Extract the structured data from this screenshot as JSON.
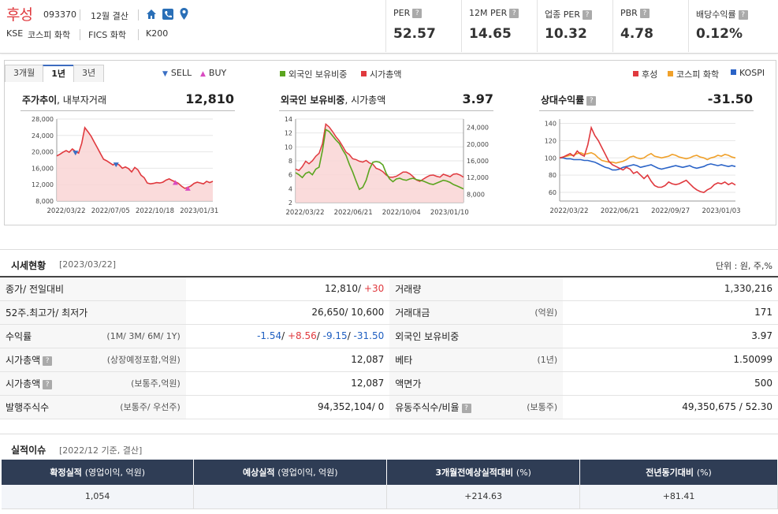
{
  "header": {
    "company": "후성",
    "code": "093370",
    "settlement": "12월 결산",
    "market": "KSE",
    "market_sector": "코스피 화학",
    "fics": "FICS 화학",
    "index": "K200",
    "icons": [
      "home-icon",
      "phone-icon",
      "location-icon"
    ]
  },
  "metrics": [
    {
      "label": "PER",
      "value": "52.57"
    },
    {
      "label": "12M PER",
      "value": "14.65"
    },
    {
      "label": "업종 PER",
      "value": "10.32"
    },
    {
      "label": "PBR",
      "value": "4.78"
    },
    {
      "label": "배당수익률",
      "value": "0.12%"
    }
  ],
  "chart_tabs": [
    "3개월",
    "1년",
    "3년"
  ],
  "active_tab": "1년",
  "legends": {
    "sell": "SELL",
    "buy": "BUY",
    "foreign": "외국인 보유비중",
    "mcap": "시가총액",
    "stock": "후성",
    "sector": "코스피 화학",
    "kospi": "KOSPI"
  },
  "colors": {
    "stock": "#e0393e",
    "sector": "#f0a12b",
    "kospi": "#2a63c7",
    "foreign": "#5ba51f",
    "sell": "#3a6fc4",
    "buy": "#d94bc1"
  },
  "charts": {
    "price": {
      "title": "주가추이",
      "subtitle": ", 내부자거래",
      "value": "12,810"
    },
    "foreign": {
      "title": "외국인 보유비중",
      "subtitle": ", 시가총액",
      "value": "3.97"
    },
    "relative": {
      "title": "상대수익률",
      "value": "-31.50"
    }
  },
  "chart_data": [
    {
      "type": "line",
      "title": "주가추이, 내부자거래",
      "x_ticks": [
        "2022/03/22",
        "2022/07/05",
        "2022/10/18",
        "2023/01/31"
      ],
      "y_ticks": [
        "28,000",
        "24,000",
        "20,000",
        "16,000",
        "12,000",
        "8,000"
      ],
      "ylim": [
        8000,
        28000
      ],
      "series": [
        {
          "name": "후성",
          "values": [
            19000,
            19400,
            19900,
            20300,
            19900,
            20700,
            20100,
            19700,
            22100,
            25900,
            24900,
            23800,
            22400,
            21000,
            19600,
            18200,
            17800,
            17300,
            16800,
            17200,
            16800,
            16000,
            16300,
            15900,
            15100,
            16200,
            15600,
            14300,
            13700,
            12400,
            12200,
            12300,
            12500,
            12400,
            12600,
            13100,
            13400,
            13000,
            12700,
            12300,
            11600,
            11100,
            11300,
            11700,
            12300,
            12600,
            12400,
            12200,
            12800,
            12500,
            12810
          ]
        }
      ],
      "markers": [
        {
          "kind": "SELL",
          "index": 6
        },
        {
          "kind": "SELL",
          "index": 19
        },
        {
          "kind": "BUY",
          "index": 38
        },
        {
          "kind": "BUY",
          "index": 42
        }
      ]
    },
    {
      "type": "line",
      "title": "외국인 보유비중, 시가총액",
      "x_ticks": [
        "2022/03/22",
        "2022/06/21",
        "2022/10/04",
        "2023/01/10"
      ],
      "y_left_ticks": [
        "14",
        "12",
        "10",
        "8",
        "6",
        "4",
        "2"
      ],
      "y_right_ticks": [
        "24,000",
        "20,000",
        "16,000",
        "12,000",
        "8,000"
      ],
      "ylim_left": [
        2,
        14
      ],
      "ylim_right": [
        6000,
        26000
      ],
      "series": [
        {
          "name": "외국인 보유비중",
          "axis": "left",
          "values": [
            6.3,
            6.0,
            5.6,
            6.2,
            6.4,
            6.0,
            6.8,
            7.1,
            9.5,
            12.5,
            12.2,
            11.6,
            11.0,
            10.5,
            9.6,
            8.8,
            7.5,
            6.4,
            5.1,
            3.9,
            4.2,
            5.2,
            6.8,
            7.8,
            7.9,
            7.8,
            7.4,
            6.2,
            5.4,
            5.0,
            5.4,
            5.5,
            5.3,
            5.2,
            5.4,
            5.5,
            5.3,
            5.2,
            5.1,
            4.9,
            4.7,
            4.6,
            4.8,
            5.0,
            5.2,
            5.1,
            4.9,
            4.6,
            4.4,
            4.2,
            3.97
          ]
        },
        {
          "name": "시가총액",
          "axis": "right",
          "values": [
            14000,
            13700,
            14600,
            15900,
            15300,
            16000,
            17100,
            17800,
            20100,
            24800,
            24100,
            23000,
            21800,
            20800,
            19500,
            18100,
            17500,
            16500,
            16300,
            15900,
            15700,
            16100,
            15500,
            15200,
            14200,
            13900,
            13400,
            12600,
            12100,
            12100,
            12300,
            12800,
            13300,
            13300,
            12900,
            12200,
            11400,
            11100,
            11600,
            12100,
            12500,
            12600,
            12300,
            12100,
            12800,
            12500,
            12200,
            12800,
            12900,
            12600,
            12087
          ]
        }
      ]
    },
    {
      "type": "line",
      "title": "상대수익률",
      "x_ticks": [
        "2022/03/22",
        "2022/06/21",
        "2022/09/27",
        "2023/01/03"
      ],
      "y_ticks": [
        "140",
        "120",
        "100",
        "80",
        "60"
      ],
      "ylim": [
        50,
        145
      ],
      "series": [
        {
          "name": "후성",
          "values": [
            100,
            101,
            103,
            105,
            102,
            108,
            104,
            102,
            115,
            135,
            126,
            120,
            112,
            104,
            96,
            92,
            90,
            88,
            86,
            89,
            87,
            82,
            84,
            80,
            76,
            80,
            73,
            68,
            66,
            66,
            68,
            72,
            70,
            69,
            70,
            72,
            74,
            70,
            66,
            63,
            61,
            60,
            63,
            65,
            69,
            71,
            70,
            72,
            69,
            71,
            68.5
          ]
        },
        {
          "name": "코스피 화학",
          "values": [
            100,
            101,
            102,
            103,
            103,
            105,
            106,
            104,
            105,
            106,
            104,
            100,
            97,
            96,
            95,
            95,
            94,
            95,
            96,
            98,
            101,
            102,
            100,
            99,
            100,
            103,
            105,
            102,
            101,
            100,
            101,
            102,
            104,
            103,
            101,
            100,
            99,
            100,
            102,
            103,
            101,
            100,
            98,
            100,
            101,
            103,
            102,
            104,
            103,
            101,
            100
          ]
        },
        {
          "name": "KOSPI",
          "values": [
            100,
            100,
            99,
            99,
            98,
            98,
            98,
            97,
            97,
            96,
            95,
            93,
            91,
            89,
            88,
            86,
            86,
            87,
            89,
            90,
            91,
            92,
            91,
            89,
            90,
            91,
            92,
            90,
            88,
            87,
            88,
            89,
            90,
            91,
            90,
            89,
            90,
            91,
            89,
            88,
            89,
            90,
            92,
            93,
            92,
            91,
            92,
            91,
            90,
            91,
            90
          ]
        }
      ]
    }
  ],
  "market_status": {
    "title": "시세현황",
    "date": "[2023/03/22]",
    "unit": "단위 : 원, 주,%",
    "rows": [
      {
        "k1": "종가/ 전일대비",
        "u1": "",
        "k2": "거래량",
        "u2": "",
        "v2": "1,330,216"
      },
      {
        "k1": "52주.최고가/ 최저가",
        "u1": "",
        "k2": "거래대금",
        "u2": "(억원)",
        "v2": "171"
      },
      {
        "k1": "수익률",
        "u1": "(1M/ 3M/ 6M/ 1Y)",
        "k2": "외국인 보유비중",
        "u2": "",
        "v2": "3.97"
      },
      {
        "k1": "시가총액",
        "u1": "(상장예정포함,억원)",
        "k2": "베타",
        "u2": "(1년)",
        "v2": "1.50099"
      },
      {
        "k1": "시가총액",
        "u1": "(보통주,억원)",
        "k2": "액면가",
        "u2": "",
        "v2": "500"
      },
      {
        "k1": "발행주식수",
        "u1": "(보통주/ 우선주)",
        "k2": "유동주식수/비율",
        "u2": "(보통주)",
        "v2": "49,350,675 / 52.30"
      }
    ],
    "close": "12,810",
    "change": "+30",
    "high_low": "26,650/ 10,600",
    "returns": [
      "-1.54",
      "+8.56",
      "-9.15",
      "-31.50"
    ],
    "mcap_incl": "12,087",
    "mcap_common": "12,087",
    "shares": "94,352,104/ 0"
  },
  "performance": {
    "title": "실적이슈",
    "subtitle": "[2022/12 기준, 결산]",
    "headers": [
      {
        "main": "확정실적",
        "sub": "(영업이익, 억원)"
      },
      {
        "main": "예상실적",
        "sub": "(영업이익, 억원)"
      },
      {
        "main": "3개월전예상실적대비",
        "sub": "(%)"
      },
      {
        "main": "전년동기대비",
        "sub": "(%)"
      }
    ],
    "values": [
      "1,054",
      "",
      "+214.63",
      "+81.41"
    ]
  }
}
